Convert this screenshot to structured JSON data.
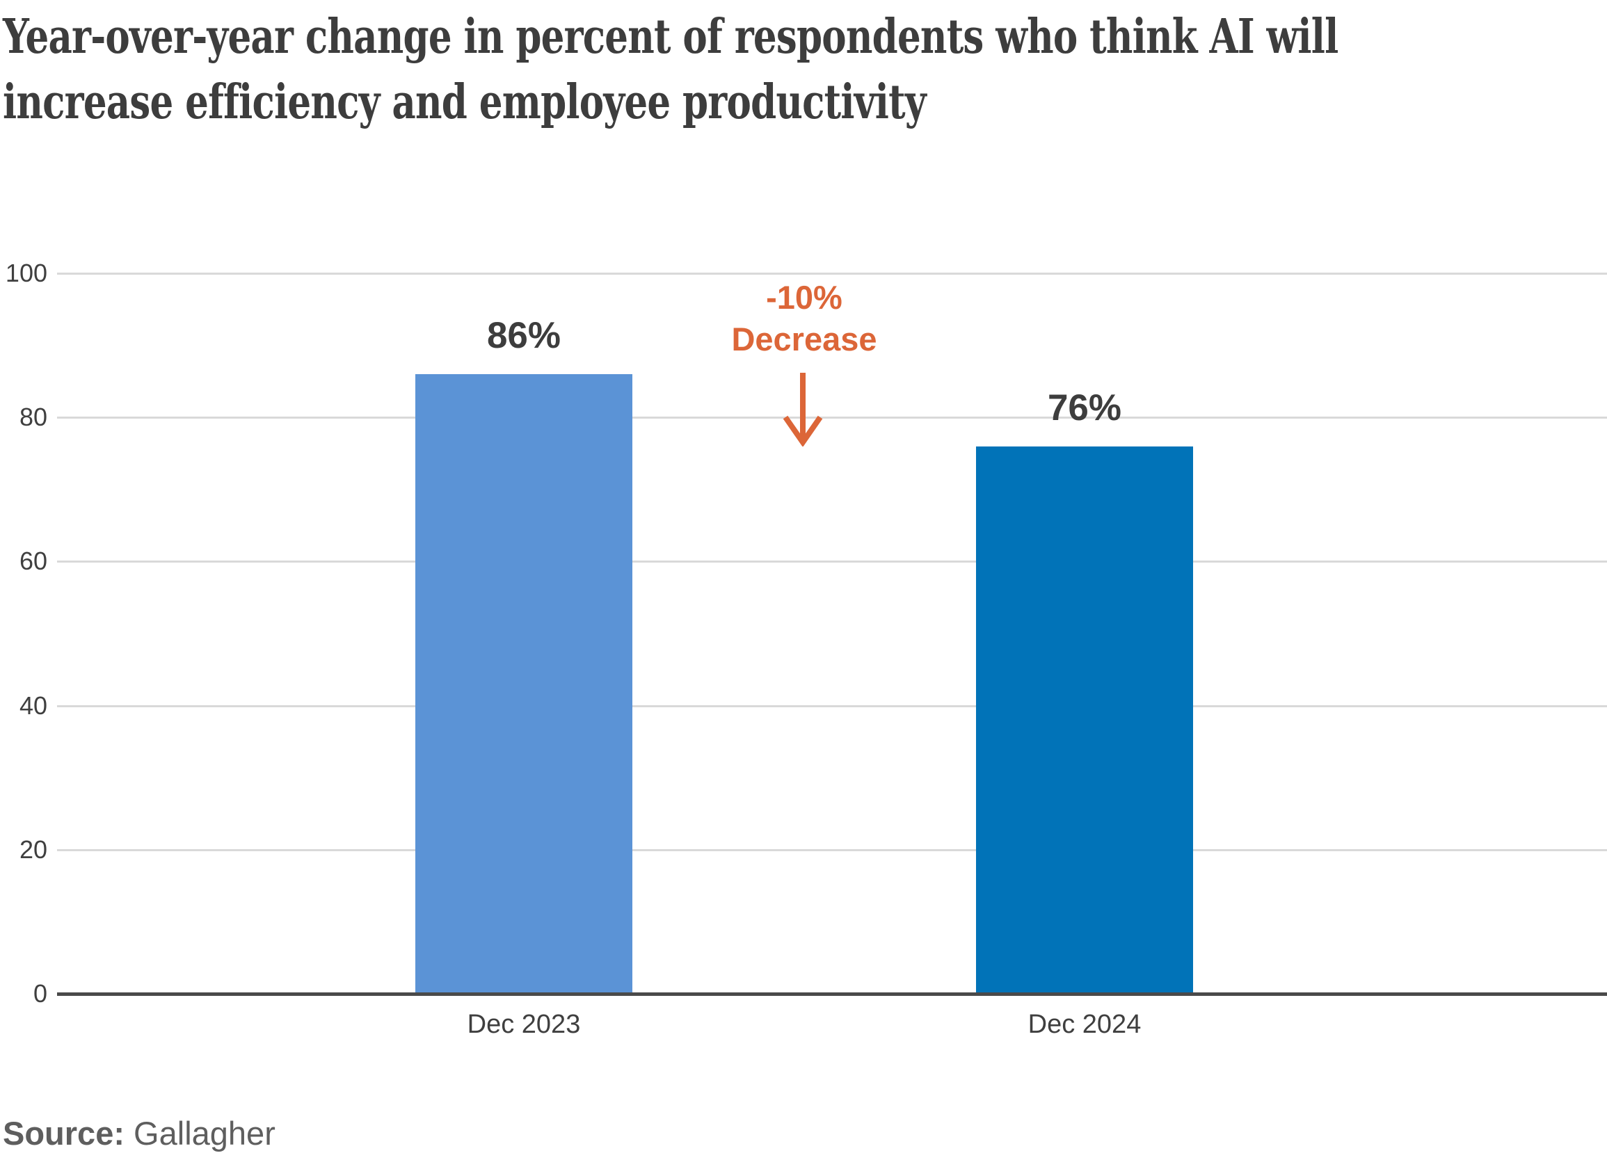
{
  "title": "Year-over-year change in percent of respondents who think AI will increase efficiency and employee productivity",
  "title_lines": [
    "Year-over-year change in percent of respondents who think AI will",
    "increase efficiency and employee productivity"
  ],
  "annotation": {
    "line1": "-10%",
    "line2": "Decrease",
    "arrow_icon": "arrow-down"
  },
  "source": {
    "label": "Source:",
    "name": " Gallagher"
  },
  "colors": {
    "title": "#3d3d3d",
    "value_label": "#3d3d3d",
    "tick_label": "#3f3f3f",
    "grid": "#d9d9d9",
    "axis": "#4a4a4a",
    "annotation_orange": "#dc6638",
    "source_gray": "#5e5e5e",
    "bar_2023_blue": "#5b93d6",
    "bar_2024_blue": "#0173b8",
    "background": "#ffffff"
  },
  "chart_data": {
    "type": "bar",
    "title": "Year-over-year change in percent of respondents who think AI will increase efficiency and employee productivity",
    "categories": [
      "Dec 2023",
      "Dec 2024"
    ],
    "values": [
      86,
      76
    ],
    "value_labels": [
      "86%",
      "76%"
    ],
    "bar_colors": [
      "#5b93d6",
      "#0173b8"
    ],
    "xlabel": "",
    "ylabel": "",
    "ylim": [
      0,
      100
    ],
    "yticks": [
      0,
      20,
      40,
      60,
      80,
      100
    ],
    "grid": true,
    "legend": "none",
    "annotation": {
      "text": "-10% Decrease",
      "color": "#dc6638",
      "placement": "between the two bars, arrow pointing down"
    },
    "source": "Gallagher"
  }
}
